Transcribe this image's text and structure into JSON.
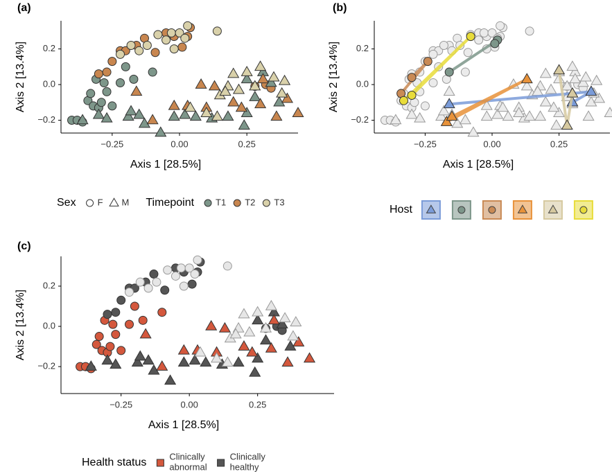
{
  "chart_data": [
    {
      "type": "scatter",
      "label": "(a)",
      "xlabel": "Axis 1 [28.5%]",
      "ylabel": "Axis 2 [13.4%]",
      "xlim": [
        -0.44,
        0.44
      ],
      "ylim": [
        -0.272,
        0.358
      ],
      "xticks": [
        {
          "value": -0.25,
          "label": "−0.25"
        },
        {
          "value": 0,
          "label": "0.00"
        },
        {
          "value": 0.25,
          "label": "0.25"
        }
      ],
      "yticks": [
        {
          "value": -0.2,
          "label": "−0.2"
        },
        {
          "value": 0,
          "label": "0.0"
        },
        {
          "value": 0.2,
          "label": "0.2"
        }
      ],
      "series": [
        {
          "shape": "circle",
          "color": "#7d968a",
          "x": [
            -0.4,
            -0.38,
            -0.36,
            -0.34,
            -0.33,
            -0.32,
            -0.3,
            -0.29,
            -0.27,
            -0.25,
            -0.22,
            -0.31,
            -0.28,
            -0.2,
            -0.17,
            -0.1
          ],
          "values": [
            -0.2,
            -0.2,
            -0.21,
            -0.09,
            -0.05,
            -0.12,
            -0.13,
            -0.1,
            -0.04,
            -0.12,
            0.01,
            0.03,
            0.01,
            0.1,
            0.03,
            0.07
          ]
        },
        {
          "shape": "circle",
          "color": "#c8864f",
          "x": [
            -0.3,
            -0.27,
            -0.25,
            -0.22,
            -0.2,
            -0.16,
            -0.13,
            -0.09,
            -0.05,
            -0.02,
            0.01,
            0.03,
            0.04,
            0.28,
            0.32,
            0.34
          ],
          "values": [
            0.06,
            0.07,
            0.13,
            0.19,
            0.19,
            0.22,
            0.26,
            0.18,
            0.29,
            0.27,
            0.21,
            0.27,
            0.32,
            -0.01,
            0.0,
            -0.02
          ]
        },
        {
          "shape": "circle",
          "color": "#d9d1aa",
          "x": [
            -0.22,
            -0.18,
            -0.15,
            -0.12,
            -0.08,
            -0.05,
            -0.03,
            0.0,
            0.02,
            0.03,
            0.14,
            -0.02
          ],
          "values": [
            0.17,
            0.22,
            0.19,
            0.22,
            0.28,
            0.25,
            0.29,
            0.29,
            0.26,
            0.33,
            0.3,
            0.2
          ]
        },
        {
          "shape": "triangle",
          "color": "#7d968a",
          "x": [
            -0.36,
            -0.3,
            -0.27,
            -0.19,
            -0.18,
            -0.15,
            -0.13,
            -0.07,
            -0.02,
            0.02,
            0.06,
            0.12,
            0.18,
            0.25,
            0.28,
            0.31,
            0.34,
            0.25,
            0.37,
            0.24
          ],
          "values": [
            -0.2,
            -0.17,
            -0.19,
            -0.18,
            -0.15,
            -0.17,
            -0.22,
            -0.27,
            -0.18,
            -0.17,
            -0.18,
            -0.19,
            -0.18,
            -0.16,
            -0.07,
            0.07,
            0.01,
            0.03,
            -0.1,
            -0.23
          ]
        },
        {
          "shape": "triangle",
          "color": "#c8864f",
          "x": [
            -0.16,
            -0.1,
            0.13,
            0.1,
            0.2,
            0.23,
            0.3,
            0.44,
            0.31,
            0.08,
            0.36,
            0.4,
            -0.02,
            0.03
          ],
          "values": [
            -0.04,
            -0.2,
            -0.01,
            -0.13,
            -0.1,
            -0.13,
            -0.11,
            -0.16,
            0.03,
            0.0,
            -0.18,
            -0.08,
            -0.12,
            -0.12
          ]
        },
        {
          "shape": "triangle",
          "color": "#d9d1aa",
          "x": [
            0.04,
            0.1,
            0.15,
            0.18,
            0.22,
            0.25,
            0.3,
            0.35,
            0.38,
            0.39,
            0.28,
            0.2,
            0.14,
            0.17
          ],
          "values": [
            -0.13,
            -0.16,
            -0.06,
            -0.01,
            -0.03,
            0.07,
            0.1,
            0.04,
            -0.05,
            0.02,
            -0.01,
            0.06,
            -0.18,
            -0.04
          ]
        }
      ],
      "legend": [
        {
          "title": "Sex",
          "entries": [
            {
              "label": "F",
              "shape": "circle",
              "color": "#ffffff"
            },
            {
              "label": "M",
              "shape": "triangle",
              "color": "#ffffff"
            }
          ]
        },
        {
          "title": "Timepoint",
          "entries": [
            {
              "label": "T1",
              "shape": "circle",
              "color": "#7d968a"
            },
            {
              "label": "T2",
              "shape": "circle",
              "color": "#c8864f"
            },
            {
              "label": "T3",
              "shape": "circle",
              "color": "#d9d1aa"
            }
          ]
        }
      ]
    },
    {
      "type": "scatter",
      "label": "(b)",
      "xlabel": "Axis 1 [28.5%]",
      "ylabel": "Axis 2 [13.4%]",
      "xlim": [
        -0.44,
        0.44
      ],
      "ylim": [
        -0.272,
        0.358
      ],
      "xticks": [
        {
          "value": -0.25,
          "label": "−0.25"
        },
        {
          "value": 0,
          "label": "0.00"
        },
        {
          "value": 0.25,
          "label": "0.25"
        }
      ],
      "yticks": [
        {
          "value": -0.2,
          "label": "−0.2"
        },
        {
          "value": 0,
          "label": "0.0"
        },
        {
          "value": 0.2,
          "label": "0.2"
        }
      ],
      "series": [
        {
          "shape": "circle",
          "color": "#ebebeb",
          "x": [
            -0.4,
            -0.38,
            -0.36,
            -0.34,
            -0.33,
            -0.32,
            -0.3,
            -0.29,
            -0.27,
            -0.25,
            -0.22,
            -0.31,
            -0.28,
            -0.2,
            -0.17,
            -0.1,
            -0.3,
            -0.27,
            -0.25,
            -0.22,
            -0.2,
            -0.16,
            -0.13,
            -0.09,
            -0.05,
            -0.02,
            0.01,
            0.03,
            0.04,
            0.28,
            0.32,
            0.34,
            -0.22,
            -0.18,
            -0.15,
            -0.12,
            -0.08,
            -0.05,
            -0.03,
            0.0,
            0.02,
            0.03,
            0.14,
            -0.02
          ],
          "values": [
            -0.2,
            -0.2,
            -0.21,
            -0.09,
            -0.05,
            -0.12,
            -0.13,
            -0.1,
            -0.04,
            -0.12,
            0.01,
            0.03,
            0.01,
            0.1,
            0.03,
            0.07,
            0.06,
            0.07,
            0.13,
            0.19,
            0.19,
            0.22,
            0.26,
            0.18,
            0.29,
            0.27,
            0.21,
            0.27,
            0.32,
            -0.01,
            0.0,
            -0.02,
            0.17,
            0.22,
            0.19,
            0.22,
            0.28,
            0.25,
            0.29,
            0.29,
            0.26,
            0.33,
            0.3,
            0.2
          ]
        },
        {
          "shape": "triangle",
          "color": "#ebebeb",
          "x": [
            -0.36,
            -0.3,
            -0.27,
            -0.19,
            -0.18,
            -0.15,
            -0.13,
            -0.07,
            -0.02,
            0.02,
            0.06,
            0.12,
            0.18,
            0.25,
            0.28,
            0.31,
            0.34,
            0.25,
            0.37,
            0.24,
            -0.16,
            -0.1,
            0.13,
            0.1,
            0.2,
            0.23,
            0.3,
            0.44,
            0.31,
            0.08,
            0.36,
            0.4,
            -0.02,
            0.03,
            0.04,
            0.1,
            0.15,
            0.18,
            0.22,
            0.25,
            0.3,
            0.35,
            0.38,
            0.39,
            0.28,
            0.2,
            0.14,
            0.17
          ],
          "values": [
            -0.2,
            -0.17,
            -0.19,
            -0.18,
            -0.15,
            -0.17,
            -0.22,
            -0.27,
            -0.18,
            -0.17,
            -0.18,
            -0.19,
            -0.18,
            -0.16,
            -0.07,
            0.07,
            0.01,
            0.03,
            -0.1,
            -0.23,
            -0.04,
            -0.2,
            -0.01,
            -0.13,
            -0.1,
            -0.13,
            -0.11,
            -0.16,
            0.03,
            0.0,
            -0.18,
            -0.08,
            -0.12,
            -0.12,
            -0.13,
            -0.16,
            -0.06,
            -0.01,
            -0.03,
            0.07,
            0.1,
            0.04,
            -0.05,
            0.02,
            -0.01,
            0.06,
            -0.18,
            -0.04
          ]
        },
        {
          "shape": "triangle",
          "color": "#7a9bd8",
          "path": true,
          "x": [
            -0.16,
            0.37,
            0.3
          ],
          "values": [
            -0.11,
            -0.04,
            -0.1
          ]
        },
        {
          "shape": "circle",
          "color": "#7d968a",
          "path": true,
          "x": [
            -0.16,
            0.02,
            0.01
          ],
          "values": [
            0.07,
            0.25,
            0.23
          ]
        },
        {
          "shape": "circle",
          "color": "#c98a55",
          "path": true,
          "x": [
            -0.34,
            -0.24,
            -0.3
          ],
          "values": [
            -0.05,
            0.13,
            0.04
          ]
        },
        {
          "shape": "triangle",
          "color": "#e8923a",
          "path": true,
          "x": [
            -0.17,
            0.13,
            -0.15
          ],
          "values": [
            -0.21,
            0.03,
            -0.18
          ]
        },
        {
          "shape": "triangle",
          "color": "#d6c9a0",
          "path": true,
          "x": [
            0.25,
            0.28,
            0.3
          ],
          "values": [
            0.08,
            -0.23,
            -0.05
          ]
        },
        {
          "shape": "circle",
          "color": "#e8dc3a",
          "path": true,
          "x": [
            -0.33,
            -0.08,
            -0.3
          ],
          "values": [
            -0.09,
            0.27,
            -0.06
          ]
        }
      ],
      "legend": [
        {
          "title": "Host",
          "entries": [
            {
              "shape": "triangle",
              "color": "#7a9bd8"
            },
            {
              "shape": "circle",
              "color": "#7d968a"
            },
            {
              "shape": "circle",
              "color": "#c98a55"
            },
            {
              "shape": "triangle",
              "color": "#e8923a"
            },
            {
              "shape": "triangle",
              "color": "#d6c9a0"
            },
            {
              "shape": "circle",
              "color": "#e8dc3a"
            }
          ]
        }
      ]
    },
    {
      "type": "scatter",
      "label": "(c)",
      "xlabel": "Axis 1 [28.5%]",
      "ylabel": "Axis 2 [13.4%]",
      "xlim": [
        -0.47,
        0.53
      ],
      "ylim": [
        -0.334,
        0.348
      ],
      "xticks": [
        {
          "value": -0.25,
          "label": "−0.25"
        },
        {
          "value": 0,
          "label": "0.00"
        },
        {
          "value": 0.25,
          "label": "0.25"
        }
      ],
      "yticks": [
        {
          "value": -0.2,
          "label": "−0.2"
        },
        {
          "value": 0,
          "label": "0.0"
        },
        {
          "value": 0.2,
          "label": "0.2"
        }
      ],
      "series": [
        {
          "shape": "circle",
          "color": "#d4583d",
          "x": [
            -0.4,
            -0.38,
            -0.36,
            -0.34,
            -0.33,
            -0.32,
            -0.3,
            -0.29,
            -0.27,
            -0.25,
            -0.22,
            -0.31,
            -0.28,
            -0.2,
            -0.17,
            -0.1
          ],
          "values": [
            -0.2,
            -0.2,
            -0.21,
            -0.09,
            -0.05,
            -0.12,
            -0.13,
            -0.1,
            -0.04,
            -0.12,
            0.01,
            0.03,
            0.01,
            0.1,
            0.03,
            0.07
          ]
        },
        {
          "shape": "circle",
          "color": "#555555",
          "x": [
            -0.3,
            -0.27,
            -0.25,
            -0.22,
            -0.2,
            -0.16,
            -0.13,
            -0.09,
            -0.05,
            -0.02,
            0.01,
            0.03,
            0.04,
            0.28,
            0.32,
            0.34
          ],
          "values": [
            0.06,
            0.07,
            0.13,
            0.19,
            0.19,
            0.22,
            0.26,
            0.18,
            0.29,
            0.27,
            0.21,
            0.27,
            0.32,
            -0.01,
            0.0,
            -0.02
          ]
        },
        {
          "shape": "circle",
          "color": "#e6e6e6",
          "x": [
            -0.22,
            -0.18,
            -0.15,
            -0.12,
            -0.08,
            -0.05,
            -0.03,
            0.0,
            0.02,
            0.03,
            0.14,
            -0.02
          ],
          "values": [
            0.17,
            0.22,
            0.19,
            0.22,
            0.28,
            0.25,
            0.29,
            0.29,
            0.26,
            0.33,
            0.3,
            0.2
          ]
        },
        {
          "shape": "triangle",
          "color": "#555555",
          "x": [
            -0.36,
            -0.3,
            -0.27,
            -0.19,
            -0.18,
            -0.15,
            -0.13,
            -0.07,
            -0.02,
            0.02,
            0.06,
            0.12,
            0.18,
            0.25,
            0.28,
            0.31,
            0.34,
            0.25,
            0.37,
            0.24
          ],
          "values": [
            -0.2,
            -0.17,
            -0.19,
            -0.18,
            -0.15,
            -0.17,
            -0.22,
            -0.27,
            -0.18,
            -0.17,
            -0.18,
            -0.19,
            -0.18,
            -0.16,
            -0.07,
            0.07,
            0.01,
            0.03,
            -0.1,
            -0.23
          ]
        },
        {
          "shape": "triangle",
          "color": "#d4583d",
          "x": [
            -0.16,
            -0.1,
            0.13,
            0.1,
            0.2,
            0.23,
            0.3,
            0.44,
            0.31,
            0.08,
            0.36,
            0.4,
            -0.02,
            0.03
          ],
          "values": [
            -0.04,
            -0.2,
            -0.01,
            -0.13,
            -0.1,
            -0.13,
            -0.11,
            -0.16,
            0.03,
            0.0,
            -0.18,
            -0.08,
            -0.12,
            -0.12
          ]
        },
        {
          "shape": "triangle",
          "color": "#e6e6e6",
          "x": [
            0.04,
            0.1,
            0.15,
            0.18,
            0.22,
            0.25,
            0.3,
            0.35,
            0.38,
            0.39,
            0.28,
            0.2,
            0.14,
            0.17
          ],
          "values": [
            -0.13,
            -0.16,
            -0.06,
            -0.01,
            -0.03,
            0.07,
            0.1,
            0.04,
            -0.05,
            0.02,
            -0.01,
            0.06,
            -0.18,
            -0.04
          ]
        }
      ],
      "legend": [
        {
          "title": "Health status",
          "entries": [
            {
              "label": [
                "Clinically",
                "abnormal"
              ],
              "shape": "square",
              "color": "#d4583d"
            },
            {
              "label": [
                "Clinically",
                "healthy"
              ],
              "shape": "square",
              "color": "#555555"
            }
          ]
        }
      ]
    }
  ]
}
